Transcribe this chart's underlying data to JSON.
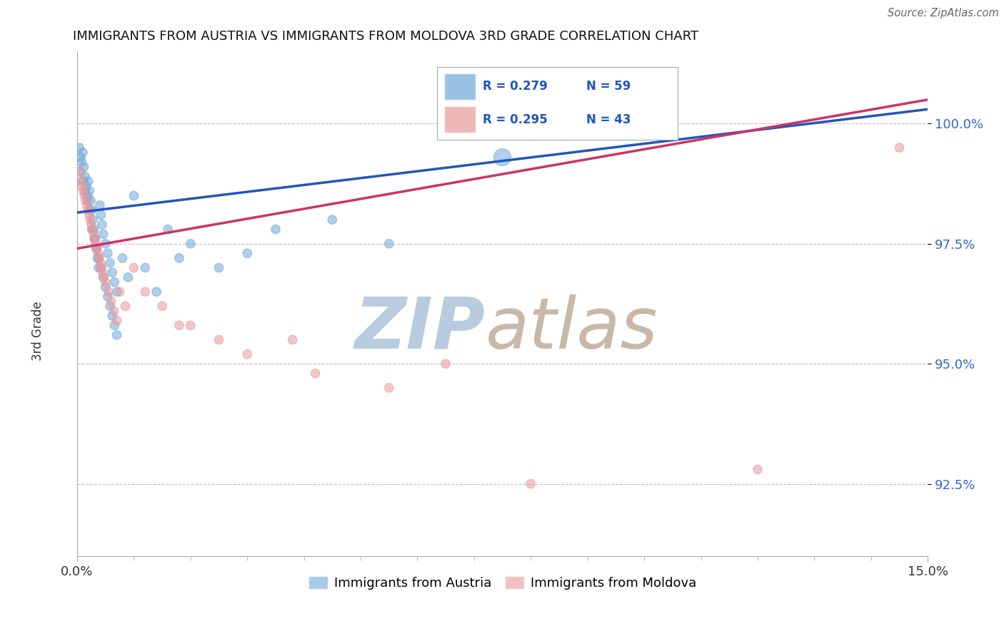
{
  "title": "IMMIGRANTS FROM AUSTRIA VS IMMIGRANTS FROM MOLDOVA 3RD GRADE CORRELATION CHART",
  "source": "Source: ZipAtlas.com",
  "ylabel": "3rd Grade",
  "xlim": [
    0.0,
    15.0
  ],
  "ylim": [
    91.0,
    101.5
  ],
  "yticks": [
    92.5,
    95.0,
    97.5,
    100.0
  ],
  "ytick_labels": [
    "92.5%",
    "95.0%",
    "97.5%",
    "100.0%"
  ],
  "xtick_labels": [
    "0.0%",
    "15.0%"
  ],
  "austria_color": "#6fa8dc",
  "moldova_color": "#ea9999",
  "austria_R": 0.279,
  "austria_N": 59,
  "moldova_R": 0.295,
  "moldova_N": 43,
  "legend_austria": "Immigrants from Austria",
  "legend_moldova": "Immigrants from Moldova",
  "austria_x": [
    0.04,
    0.06,
    0.08,
    0.1,
    0.12,
    0.14,
    0.16,
    0.18,
    0.2,
    0.22,
    0.24,
    0.26,
    0.28,
    0.3,
    0.32,
    0.34,
    0.36,
    0.38,
    0.4,
    0.42,
    0.44,
    0.46,
    0.5,
    0.54,
    0.58,
    0.62,
    0.66,
    0.7,
    0.06,
    0.1,
    0.14,
    0.18,
    0.22,
    0.26,
    0.3,
    0.34,
    0.38,
    0.42,
    0.46,
    0.5,
    0.54,
    0.58,
    0.62,
    0.66,
    0.7,
    0.8,
    0.9,
    1.0,
    1.2,
    1.4,
    1.6,
    1.8,
    2.0,
    2.5,
    3.0,
    3.5,
    4.5,
    5.5,
    7.5
  ],
  "austria_y": [
    99.5,
    99.3,
    99.2,
    99.4,
    99.1,
    98.9,
    98.7,
    98.5,
    98.8,
    98.6,
    98.4,
    98.2,
    98.0,
    97.8,
    97.6,
    97.4,
    97.2,
    97.0,
    98.3,
    98.1,
    97.9,
    97.7,
    97.5,
    97.3,
    97.1,
    96.9,
    96.7,
    96.5,
    99.0,
    98.8,
    98.6,
    98.4,
    98.2,
    97.8,
    97.6,
    97.4,
    97.2,
    97.0,
    96.8,
    96.6,
    96.4,
    96.2,
    96.0,
    95.8,
    95.6,
    97.2,
    96.8,
    98.5,
    97.0,
    96.5,
    97.8,
    97.2,
    97.5,
    97.0,
    97.3,
    97.8,
    98.0,
    97.5,
    99.3
  ],
  "austria_sizes": [
    80,
    80,
    80,
    80,
    80,
    80,
    80,
    80,
    80,
    80,
    80,
    80,
    80,
    80,
    80,
    80,
    80,
    80,
    80,
    80,
    80,
    80,
    80,
    80,
    80,
    80,
    80,
    80,
    80,
    80,
    80,
    80,
    80,
    80,
    80,
    80,
    80,
    80,
    80,
    80,
    80,
    80,
    80,
    80,
    80,
    80,
    80,
    80,
    80,
    80,
    80,
    80,
    80,
    80,
    80,
    80,
    80,
    80,
    300
  ],
  "moldova_x": [
    0.05,
    0.09,
    0.13,
    0.17,
    0.21,
    0.25,
    0.29,
    0.33,
    0.37,
    0.41,
    0.45,
    0.5,
    0.55,
    0.6,
    0.65,
    0.7,
    0.07,
    0.11,
    0.15,
    0.19,
    0.23,
    0.27,
    0.31,
    0.35,
    0.39,
    0.43,
    0.47,
    0.75,
    0.85,
    1.0,
    1.2,
    1.5,
    2.0,
    2.5,
    1.8,
    3.0,
    3.8,
    4.2,
    5.5,
    6.5,
    8.0,
    12.0,
    14.5
  ],
  "moldova_y": [
    99.0,
    98.7,
    98.5,
    98.3,
    98.1,
    97.9,
    97.7,
    97.5,
    97.3,
    97.1,
    96.9,
    96.7,
    96.5,
    96.3,
    96.1,
    95.9,
    98.8,
    98.6,
    98.4,
    98.2,
    98.0,
    97.8,
    97.6,
    97.4,
    97.2,
    97.0,
    96.8,
    96.5,
    96.2,
    97.0,
    96.5,
    96.2,
    95.8,
    95.5,
    95.8,
    95.2,
    95.5,
    94.8,
    94.5,
    95.0,
    92.5,
    92.8,
    99.5
  ],
  "moldova_sizes": [
    80,
    80,
    80,
    80,
    80,
    80,
    80,
    80,
    80,
    80,
    80,
    80,
    80,
    80,
    80,
    80,
    80,
    80,
    80,
    80,
    80,
    80,
    80,
    80,
    80,
    80,
    80,
    80,
    80,
    80,
    80,
    80,
    80,
    80,
    80,
    80,
    80,
    80,
    80,
    80,
    80,
    80,
    80
  ],
  "background_color": "#ffffff",
  "grid_color": "#c0c0c8",
  "line_blue_color": "#2255bb",
  "line_pink_color": "#cc3366",
  "watermark_zip": "ZIP",
  "watermark_atlas": "atlas",
  "watermark_color_zip": "#b8cce0",
  "watermark_color_atlas": "#c8b8a8"
}
